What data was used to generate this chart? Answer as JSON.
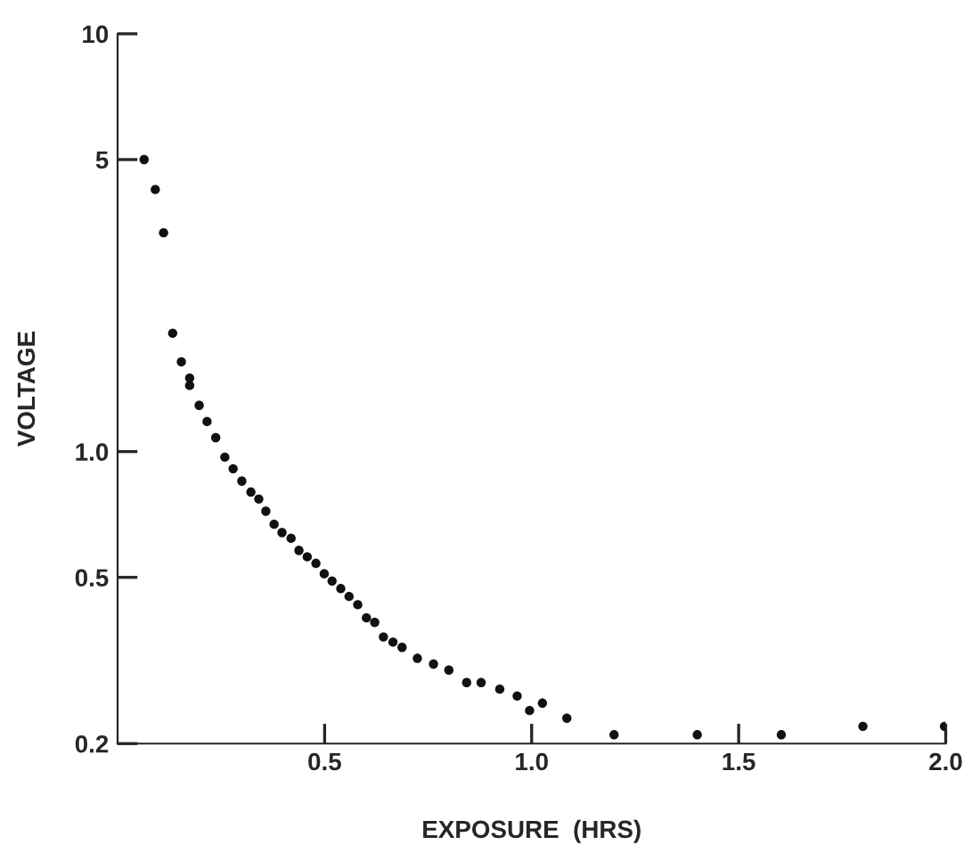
{
  "chart_data": {
    "type": "scatter",
    "xlabel": "EXPOSURE  (HRS)",
    "ylabel": "VOLTAGE",
    "log": "y",
    "marker": "circle",
    "grid": false,
    "legend": false,
    "xlim": [
      0,
      2.0
    ],
    "xticks": [
      0.5,
      {
        "value": 1.0,
        "label": "1.0"
      },
      1.5,
      {
        "value": 2.0,
        "label": "2.0"
      }
    ],
    "ylim": [
      0.2,
      10
    ],
    "yticks": [
      0.2,
      0.5,
      {
        "value": 1.0,
        "label": "1.0"
      },
      5,
      10
    ],
    "series": [
      {
        "color": "#111111",
        "x": [
          0.064,
          0.091,
          0.111,
          0.133,
          0.154,
          0.174,
          0.174,
          0.197,
          0.216,
          0.237,
          0.259,
          0.279,
          0.3,
          0.322,
          0.341,
          0.358,
          0.378,
          0.397,
          0.419,
          0.438,
          0.458,
          0.479,
          0.499,
          0.518,
          0.539,
          0.559,
          0.58,
          0.601,
          0.621,
          0.642,
          0.665,
          0.687,
          0.724,
          0.763,
          0.8,
          0.843,
          0.878,
          0.923,
          0.965,
          0.995,
          1.026,
          1.085,
          1.199,
          1.4,
          1.603,
          1.8,
          1.997
        ],
        "values": [
          5.0,
          4.24,
          3.34,
          1.92,
          1.64,
          1.5,
          1.44,
          1.29,
          1.18,
          1.08,
          0.97,
          0.91,
          0.85,
          0.8,
          0.77,
          0.72,
          0.67,
          0.64,
          0.62,
          0.58,
          0.56,
          0.54,
          0.51,
          0.49,
          0.47,
          0.45,
          0.43,
          0.4,
          0.39,
          0.36,
          0.35,
          0.34,
          0.32,
          0.31,
          0.3,
          0.28,
          0.28,
          0.27,
          0.26,
          0.24,
          0.25,
          0.23,
          0.21,
          0.21,
          0.21,
          0.22,
          0.22
        ]
      }
    ]
  }
}
